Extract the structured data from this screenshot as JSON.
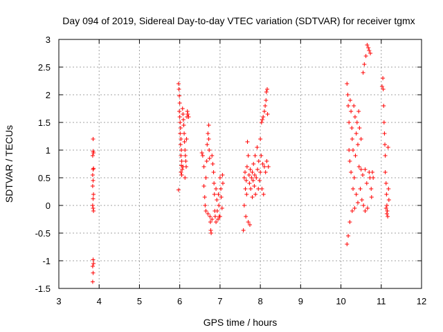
{
  "chart_data": {
    "type": "scatter",
    "title": "Day 094 of 2019, Sidereal Day-to-day VTEC variation (SDTVAR) for receiver tgmx",
    "xlabel": "GPS time / hours",
    "ylabel": "SDTVAR / TECUs",
    "xlim": [
      3,
      12
    ],
    "ylim": [
      -1.5,
      3
    ],
    "xticks": [
      "3",
      "4",
      "5",
      "6",
      "7",
      "8",
      "9",
      "10",
      "11",
      "12"
    ],
    "yticks": [
      "-1.5",
      "-1",
      "-0.5",
      "0",
      "0.5",
      "1",
      "1.5",
      "2",
      "2.5",
      "3"
    ],
    "grid": true,
    "marker": "+",
    "color": "#ff0000",
    "series": [
      {
        "name": "SDTVAR",
        "points": [
          [
            3.85,
            1.2
          ],
          [
            3.85,
            0.98
          ],
          [
            3.86,
            0.95
          ],
          [
            3.84,
            0.9
          ],
          [
            3.86,
            0.67
          ],
          [
            3.85,
            0.65
          ],
          [
            3.84,
            0.55
          ],
          [
            3.85,
            0.45
          ],
          [
            3.84,
            0.35
          ],
          [
            3.86,
            0.2
          ],
          [
            3.85,
            0.12
          ],
          [
            3.84,
            0.0
          ],
          [
            3.85,
            -0.05
          ],
          [
            3.86,
            -0.1
          ],
          [
            3.85,
            -0.98
          ],
          [
            3.86,
            -1.05
          ],
          [
            3.84,
            -1.1
          ],
          [
            3.85,
            -1.22
          ],
          [
            3.84,
            -1.38
          ],
          [
            5.97,
            0.28
          ],
          [
            5.97,
            2.2
          ],
          [
            5.98,
            2.1
          ],
          [
            5.99,
            1.98
          ],
          [
            6.0,
            1.85
          ],
          [
            5.99,
            1.7
          ],
          [
            6.0,
            1.6
          ],
          [
            6.01,
            1.5
          ],
          [
            6.02,
            1.4
          ],
          [
            6.01,
            1.3
          ],
          [
            6.03,
            1.2
          ],
          [
            6.02,
            1.1
          ],
          [
            6.04,
            1.0
          ],
          [
            6.03,
            0.9
          ],
          [
            6.05,
            0.8
          ],
          [
            6.04,
            0.72
          ],
          [
            6.06,
            0.65
          ],
          [
            6.05,
            0.55
          ],
          [
            6.07,
            1.75
          ],
          [
            6.08,
            1.65
          ],
          [
            6.09,
            1.55
          ],
          [
            6.1,
            1.45
          ],
          [
            6.11,
            1.3
          ],
          [
            6.12,
            1.15
          ],
          [
            6.13,
            1.0
          ],
          [
            6.14,
            0.9
          ],
          [
            6.15,
            0.8
          ],
          [
            6.16,
            0.7
          ],
          [
            6.17,
            1.2
          ],
          [
            6.18,
            1.6
          ],
          [
            6.19,
            1.7
          ],
          [
            6.2,
            1.65
          ],
          [
            6.22,
            1.6
          ],
          [
            6.03,
            0.6
          ],
          [
            6.08,
            0.7
          ],
          [
            6.13,
            0.5
          ],
          [
            6.55,
            0.95
          ],
          [
            6.57,
            0.9
          ],
          [
            6.6,
            0.7
          ],
          [
            6.6,
            0.35
          ],
          [
            6.62,
            0.15
          ],
          [
            6.63,
            0.0
          ],
          [
            6.65,
            -0.1
          ],
          [
            6.65,
            0.5
          ],
          [
            6.67,
            0.8
          ],
          [
            6.68,
            1.1
          ],
          [
            6.7,
            1.3
          ],
          [
            6.72,
            1.45
          ],
          [
            6.72,
            1.2
          ],
          [
            6.73,
            1.0
          ],
          [
            6.74,
            0.85
          ],
          [
            6.75,
            -0.2
          ],
          [
            6.76,
            -0.3
          ],
          [
            6.77,
            -0.45
          ],
          [
            6.78,
            -0.5
          ],
          [
            6.8,
            0.9
          ],
          [
            6.82,
            0.75
          ],
          [
            6.84,
            0.6
          ],
          [
            6.85,
            0.4
          ],
          [
            6.86,
            0.2
          ],
          [
            6.87,
            -0.1
          ],
          [
            6.88,
            -0.2
          ],
          [
            6.9,
            0.3
          ],
          [
            6.92,
            0.1
          ],
          [
            6.93,
            -0.1
          ],
          [
            6.95,
            -0.25
          ],
          [
            6.96,
            0.2
          ],
          [
            6.97,
            0.0
          ],
          [
            6.98,
            -0.2
          ],
          [
            7.0,
            0.5
          ],
          [
            7.02,
            0.3
          ],
          [
            7.03,
            0.15
          ],
          [
            7.05,
            -0.05
          ],
          [
            7.06,
            0.55
          ],
          [
            7.07,
            0.4
          ],
          [
            6.7,
            -0.15
          ],
          [
            6.8,
            -0.25
          ],
          [
            6.9,
            -0.3
          ],
          [
            7.0,
            -0.2
          ],
          [
            7.58,
            -0.45
          ],
          [
            7.6,
            0.0
          ],
          [
            7.6,
            0.5
          ],
          [
            7.62,
            0.6
          ],
          [
            7.63,
            0.3
          ],
          [
            7.64,
            -0.2
          ],
          [
            7.65,
            0.45
          ],
          [
            7.66,
            0.2
          ],
          [
            7.67,
            0.7
          ],
          [
            7.68,
            1.15
          ],
          [
            7.7,
            0.9
          ],
          [
            7.7,
            -0.3
          ],
          [
            7.72,
            0.55
          ],
          [
            7.73,
            0.4
          ],
          [
            7.74,
            -0.35
          ],
          [
            7.75,
            0.65
          ],
          [
            7.76,
            0.3
          ],
          [
            7.78,
            0.5
          ],
          [
            7.8,
            0.6
          ],
          [
            7.8,
            0.15
          ],
          [
            7.82,
            0.45
          ],
          [
            7.83,
            0.75
          ],
          [
            7.85,
            0.35
          ],
          [
            7.86,
            0.55
          ],
          [
            7.87,
            0.9
          ],
          [
            7.88,
            0.2
          ],
          [
            7.9,
            0.5
          ],
          [
            7.92,
            1.05
          ],
          [
            7.93,
            0.65
          ],
          [
            7.95,
            0.3
          ],
          [
            7.96,
            0.8
          ],
          [
            7.98,
            0.45
          ],
          [
            8.0,
            1.2
          ],
          [
            8.0,
            0.6
          ],
          [
            8.02,
            0.9
          ],
          [
            8.03,
            1.5
          ],
          [
            8.04,
            0.3
          ],
          [
            8.05,
            1.55
          ],
          [
            8.06,
            0.75
          ],
          [
            8.07,
            1.6
          ],
          [
            8.08,
            0.2
          ],
          [
            8.1,
            1.7
          ],
          [
            8.1,
            0.7
          ],
          [
            8.12,
            1.8
          ],
          [
            8.13,
            0.6
          ],
          [
            8.14,
            1.9
          ],
          [
            8.15,
            2.05
          ],
          [
            8.16,
            0.8
          ],
          [
            8.17,
            2.1
          ],
          [
            8.18,
            1.65
          ],
          [
            8.2,
            0.7
          ],
          [
            10.15,
            -0.7
          ],
          [
            10.15,
            2.2
          ],
          [
            10.17,
            2.0
          ],
          [
            10.18,
            1.8
          ],
          [
            10.18,
            -0.55
          ],
          [
            10.2,
            1.5
          ],
          [
            10.2,
            1.0
          ],
          [
            10.22,
            0.8
          ],
          [
            10.22,
            -0.3
          ],
          [
            10.23,
            1.9
          ],
          [
            10.25,
            1.7
          ],
          [
            10.25,
            0.6
          ],
          [
            10.27,
            1.4
          ],
          [
            10.28,
            1.2
          ],
          [
            10.28,
            -0.1
          ],
          [
            10.3,
            1.0
          ],
          [
            10.3,
            0.3
          ],
          [
            10.32,
            1.8
          ],
          [
            10.33,
            0.5
          ],
          [
            10.34,
            -0.05
          ],
          [
            10.35,
            1.6
          ],
          [
            10.36,
            0.9
          ],
          [
            10.38,
            1.3
          ],
          [
            10.38,
            0.2
          ],
          [
            10.4,
            1.5
          ],
          [
            10.42,
            1.1
          ],
          [
            10.42,
            0.05
          ],
          [
            10.44,
            1.7
          ],
          [
            10.45,
            0.7
          ],
          [
            10.46,
            1.4
          ],
          [
            10.48,
            0.3
          ],
          [
            10.5,
            1.2
          ],
          [
            10.5,
            0.65
          ],
          [
            10.52,
            0.1
          ],
          [
            10.54,
            0.55
          ],
          [
            10.55,
            2.4
          ],
          [
            10.56,
            0.0
          ],
          [
            10.58,
            2.55
          ],
          [
            10.6,
            0.65
          ],
          [
            10.6,
            -0.1
          ],
          [
            10.62,
            2.7
          ],
          [
            10.64,
            0.4
          ],
          [
            10.65,
            2.9
          ],
          [
            10.66,
            -0.05
          ],
          [
            10.68,
            2.85
          ],
          [
            10.7,
            2.8
          ],
          [
            10.7,
            0.6
          ],
          [
            10.72,
            0.5
          ],
          [
            10.73,
            2.75
          ],
          [
            10.75,
            0.3
          ],
          [
            10.76,
            0.15
          ],
          [
            10.78,
            0.6
          ],
          [
            10.8,
            0.5
          ],
          [
            11.02,
            2.15
          ],
          [
            11.04,
            2.3
          ],
          [
            11.05,
            2.1
          ],
          [
            11.06,
            1.8
          ],
          [
            11.07,
            1.5
          ],
          [
            11.08,
            1.3
          ],
          [
            11.09,
            1.1
          ],
          [
            11.1,
            0.9
          ],
          [
            11.1,
            0.6
          ],
          [
            11.12,
            0.4
          ],
          [
            11.13,
            0.2
          ],
          [
            11.14,
            0.0
          ],
          [
            11.15,
            -0.1
          ],
          [
            11.16,
            -0.2
          ],
          [
            11.17,
            1.05
          ],
          [
            11.18,
            0.3
          ],
          [
            11.19,
            0.1
          ],
          [
            11.12,
            -0.05
          ],
          [
            11.14,
            -0.15
          ]
        ]
      }
    ]
  }
}
